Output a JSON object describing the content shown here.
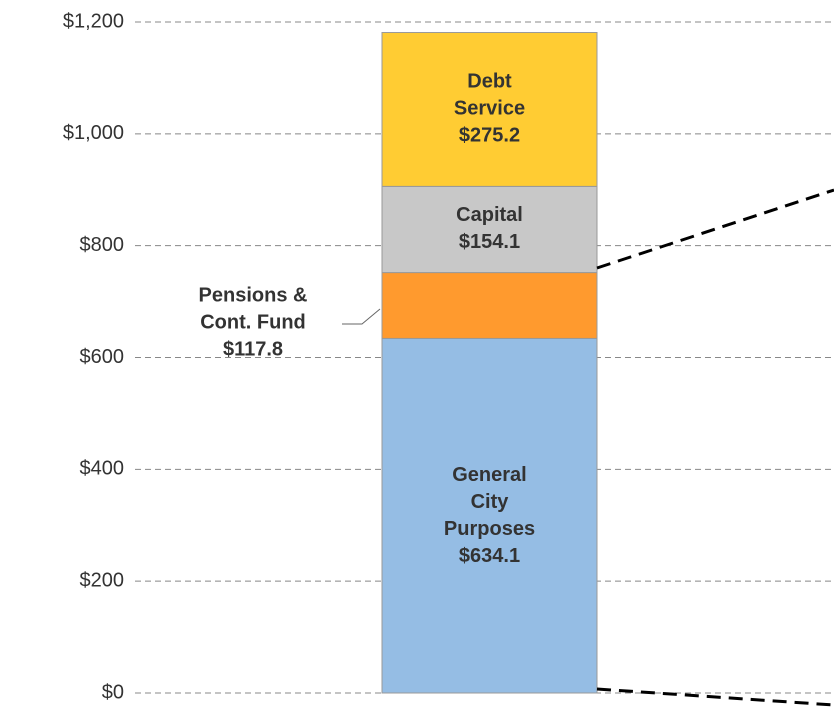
{
  "chart_data": {
    "type": "stacked_bar",
    "series": [
      {
        "name": "General City Purposes",
        "color": "#95bde4",
        "values": [
          634.1
        ],
        "value_labels": [
          "$634.1"
        ]
      },
      {
        "name": "Pensions & Cont. Fund",
        "color": "#ff9a2e",
        "values": [
          117.8
        ],
        "value_labels": [
          "$117.8"
        ]
      },
      {
        "name": "Capital",
        "color": "#c8c8c8",
        "values": [
          154.1
        ],
        "value_labels": [
          "$154.1"
        ]
      },
      {
        "name": "Debt Service",
        "color": "#ffcc33",
        "values": [
          275.2
        ],
        "value_labels": [
          "$275.2"
        ]
      }
    ],
    "ylim": [
      0,
      1200
    ],
    "yticks": [
      {
        "value": 0,
        "label": "$0"
      },
      {
        "value": 200,
        "label": "$200"
      },
      {
        "value": 400,
        "label": "$400"
      },
      {
        "value": 600,
        "label": "$600"
      },
      {
        "value": 800,
        "label": "$800"
      },
      {
        "value": 1000,
        "label": "$1,000"
      },
      {
        "value": 1200,
        "label": "$1,200"
      }
    ],
    "grid": true
  }
}
